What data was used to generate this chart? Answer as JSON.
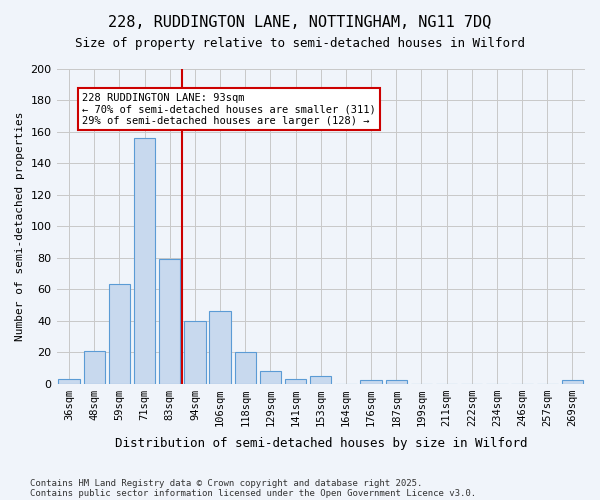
{
  "title1": "228, RUDDINGTON LANE, NOTTINGHAM, NG11 7DQ",
  "title2": "Size of property relative to semi-detached houses in Wilford",
  "xlabel": "Distribution of semi-detached houses by size in Wilford",
  "ylabel": "Number of semi-detached properties",
  "footnote1": "Contains HM Land Registry data © Crown copyright and database right 2025.",
  "footnote2": "Contains public sector information licensed under the Open Government Licence v3.0.",
  "categories": [
    "36sqm",
    "48sqm",
    "59sqm",
    "71sqm",
    "83sqm",
    "94sqm",
    "106sqm",
    "118sqm",
    "129sqm",
    "141sqm",
    "153sqm",
    "164sqm",
    "176sqm",
    "187sqm",
    "199sqm",
    "211sqm",
    "222sqm",
    "234sqm",
    "246sqm",
    "257sqm",
    "269sqm"
  ],
  "values": [
    3,
    21,
    63,
    156,
    79,
    40,
    46,
    20,
    8,
    3,
    5,
    0,
    2,
    2,
    0,
    0,
    0,
    0,
    0,
    0,
    2
  ],
  "bar_color": "#c8d9ee",
  "bar_edge_color": "#5b9bd5",
  "reference_line_x": 5,
  "reference_line_label": "228 RUDDINGTON LANE: 93sqm",
  "annotation_smaller": "← 70% of semi-detached houses are smaller (311)",
  "annotation_larger": "29% of semi-detached houses are larger (128) →",
  "annotation_box_color": "#ffffff",
  "annotation_box_edge": "#cc0000",
  "ref_line_color": "#cc0000",
  "ylim": [
    0,
    200
  ],
  "yticks": [
    0,
    20,
    40,
    60,
    80,
    100,
    120,
    140,
    160,
    180,
    200
  ],
  "grid_color": "#c8c8c8",
  "bg_color": "#f0f4fa"
}
